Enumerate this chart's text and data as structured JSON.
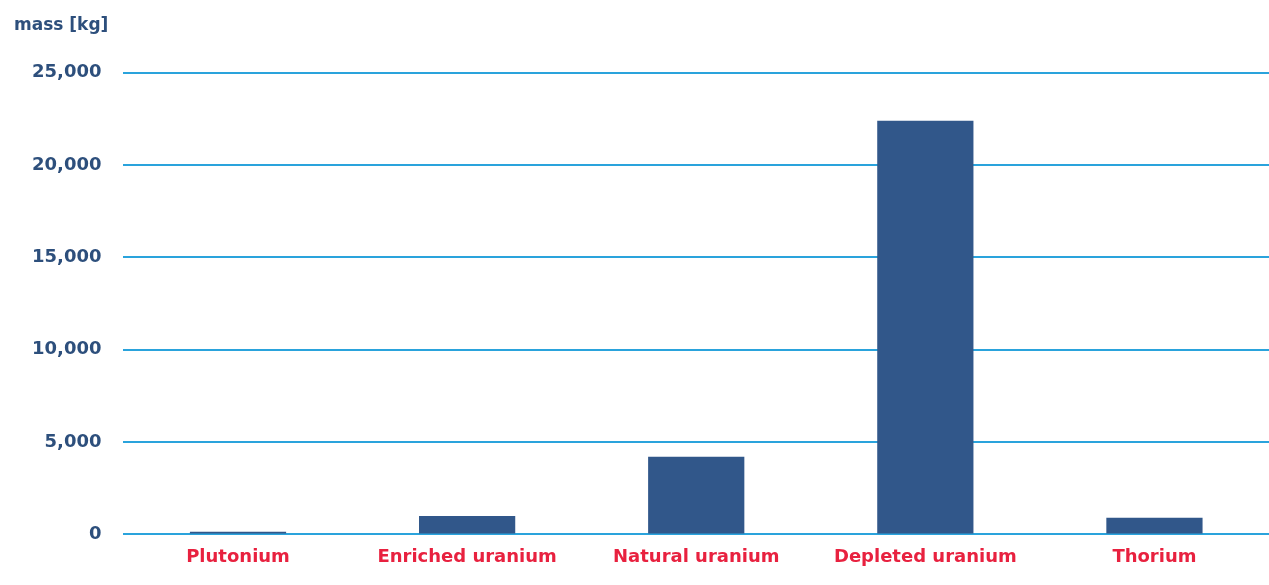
{
  "chart_data": {
    "type": "bar",
    "ylabel": "mass [kg]",
    "categories": [
      "Plutonium",
      "Enriched uranium",
      "Natural uranium",
      "Depleted uranium",
      "Thorium"
    ],
    "values": [
      150,
      1000,
      4200,
      22400,
      900
    ],
    "color": "#31578a",
    "ylim": [
      0,
      25000
    ],
    "yticks": [
      {
        "value": 0,
        "label": "0"
      },
      {
        "value": 5000,
        "label": "5,000"
      },
      {
        "value": 10000,
        "label": "10,000"
      },
      {
        "value": 15000,
        "label": "15,000"
      },
      {
        "value": 20000,
        "label": "20,000"
      },
      {
        "value": 25000,
        "label": "25,000"
      }
    ],
    "grid": "y",
    "legend": false
  }
}
